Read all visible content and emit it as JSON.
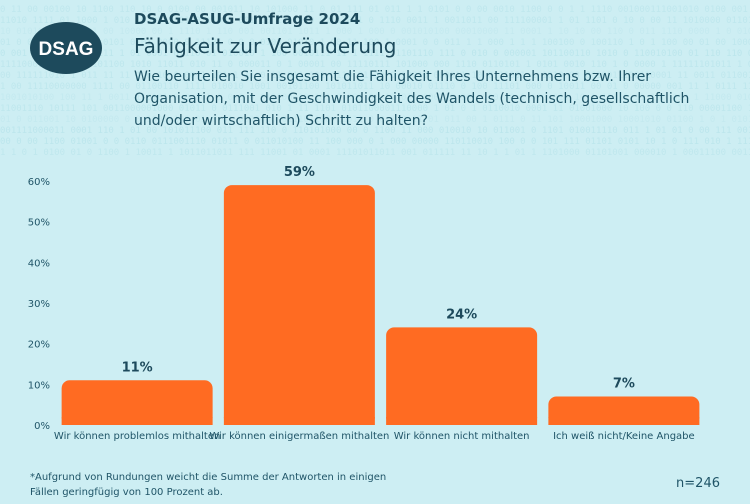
{
  "header": {
    "logo_text": "DSAG",
    "subtitle": "DSAG-ASUG-Umfrage 2024",
    "title": "Fähigkeit zur Veränderung",
    "question": "Wie beurteilen Sie insgesamt die Fähigkeit Ihres Unternehmens bzw. Ihrer Organisation, mit der Geschwindigkeit des Wandels (technisch, gesellschaftlich und/oder wirtschaftlich) Schritt zu halten?"
  },
  "chart_data": {
    "type": "bar",
    "title": "Fähigkeit zur Veränderung",
    "categories": [
      "Wir können problemlos mithalten",
      "Wir können einigermaßen mithalten",
      "Wir können nicht mithalten",
      "Ich weiß nicht/Keine Angabe"
    ],
    "values": [
      11,
      59,
      24,
      7
    ],
    "value_labels": [
      "11%",
      "59%",
      "24%",
      "7%"
    ],
    "xlabel": "",
    "ylabel": "",
    "ylim": [
      0,
      60
    ],
    "yticks": [
      0,
      10,
      20,
      30,
      40,
      50,
      60
    ],
    "ytick_labels": [
      "0%",
      "10%",
      "20%",
      "30%",
      "40%",
      "50%",
      "60%"
    ],
    "grid": false,
    "bar_color": "#ff6b22"
  },
  "footer": {
    "footnote": "*Aufgrund von Rundungen weicht die Summe der Antworten in einigen Fällen geringfügig von 100 Prozent ab.",
    "sample_size": "n=246"
  },
  "colors": {
    "background": "#cdeef3",
    "text": "#1d4a5c",
    "logo": "#1d4a5c",
    "bar": "#ff6b22"
  }
}
